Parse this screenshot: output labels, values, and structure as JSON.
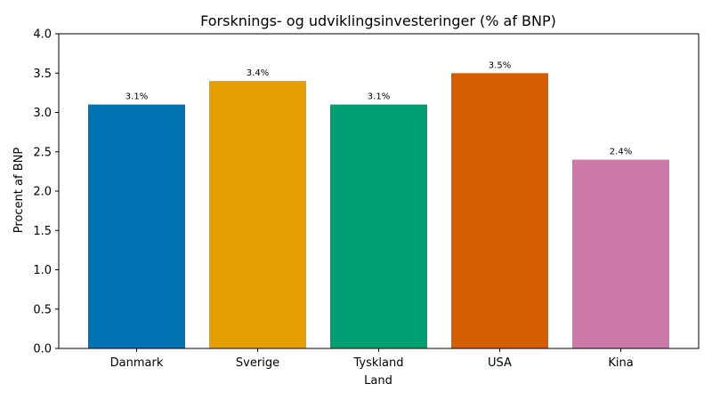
{
  "chart_data": {
    "type": "bar",
    "title": "Forsknings- og udviklingsinvesteringer (% af BNP)",
    "xlabel": "Land",
    "ylabel": "Procent af BNP",
    "categories": [
      "Danmark",
      "Sverige",
      "Tyskland",
      "USA",
      "Kina"
    ],
    "values": [
      3.1,
      3.4,
      3.1,
      3.5,
      2.4
    ],
    "data_labels": [
      "3.1%",
      "3.4%",
      "3.1%",
      "3.5%",
      "2.4%"
    ],
    "colors": [
      "#0072b2",
      "#e69f00",
      "#009e73",
      "#d55e00",
      "#cc79a7"
    ],
    "ylim": [
      0,
      4.0
    ],
    "yticks": [
      "0.0",
      "0.5",
      "1.0",
      "1.5",
      "2.0",
      "2.5",
      "3.0",
      "3.5",
      "4.0"
    ],
    "grid": false,
    "legend": "none"
  }
}
